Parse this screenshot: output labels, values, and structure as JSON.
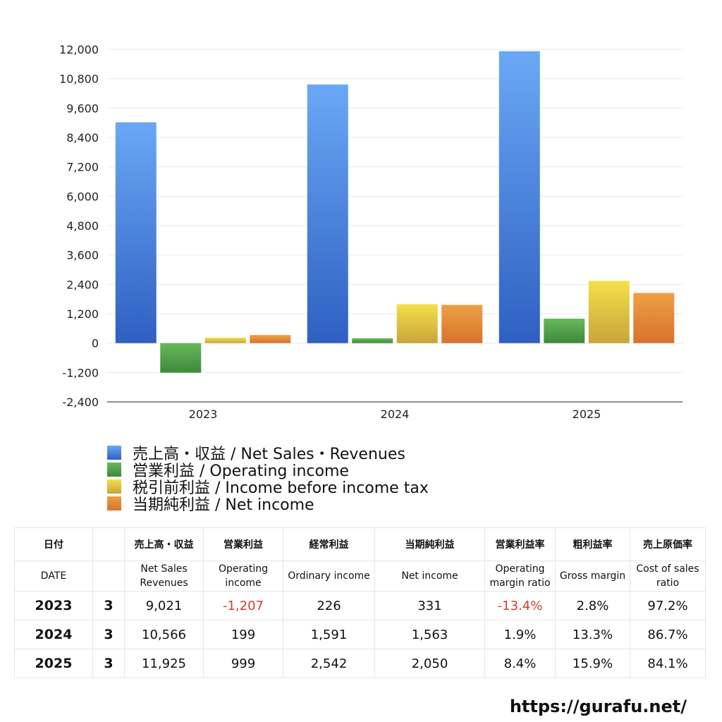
{
  "chart_data": {
    "type": "bar",
    "categories": [
      "2023",
      "2024",
      "2025"
    ],
    "series": [
      {
        "name": "売上高・収益 / Net Sales・Revenues",
        "values": [
          9021,
          10566,
          11925
        ],
        "color_top": "#6aa8f5",
        "color_bottom": "#2e60c2"
      },
      {
        "name": "営業利益 / Operating income",
        "values": [
          -1207,
          199,
          999
        ],
        "color_top": "#68b85c",
        "color_bottom": "#3c8a3a"
      },
      {
        "name": "税引前利益 / Income before income tax",
        "values": [
          226,
          1591,
          2542
        ],
        "color_top": "#f5e04a",
        "color_bottom": "#c8a43a"
      },
      {
        "name": "当期純利益 / Net income",
        "values": [
          331,
          1563,
          2050
        ],
        "color_top": "#eda044",
        "color_bottom": "#d8722e"
      }
    ],
    "ylim": [
      -2400,
      12000
    ],
    "yticks": [
      12000,
      10800,
      9600,
      8400,
      7200,
      6000,
      4800,
      3600,
      2400,
      1200,
      0,
      -1200,
      -2400
    ],
    "ytick_labels": [
      "12,000",
      "10,800",
      "9,600",
      "8,400",
      "7,200",
      "6,000",
      "4,800",
      "3,600",
      "2,400",
      "1,200",
      "0",
      "-1,200",
      "-2,400"
    ],
    "grid": true,
    "legend_position": "bottom-left",
    "title": "",
    "xlabel": "",
    "ylabel": ""
  },
  "table": {
    "header_jp": {
      "date": "日付",
      "sales": "売上高・収益",
      "operating": "営業利益",
      "ordinary": "経常利益",
      "net": "当期純利益",
      "op_margin": "営業利益率",
      "gross": "粗利益率",
      "cost": "売上原価率"
    },
    "header_en": {
      "date": "DATE",
      "sales": "Net Sales Revenues",
      "operating": "Operating income",
      "ordinary": "Ordinary income",
      "net": "Net income",
      "op_margin": "Operating margin ratio",
      "gross": "Gross margin",
      "cost": "Cost of sales ratio"
    },
    "rows": [
      {
        "year": "2023",
        "month": "3",
        "sales": "9,021",
        "operating": "-1,207",
        "ordinary": "226",
        "net": "331",
        "op_margin": "-13.4%",
        "gross": "2.8%",
        "cost": "97.2%"
      },
      {
        "year": "2024",
        "month": "3",
        "sales": "10,566",
        "operating": "199",
        "ordinary": "1,591",
        "net": "1,563",
        "op_margin": "1.9%",
        "gross": "13.3%",
        "cost": "86.7%"
      },
      {
        "year": "2025",
        "month": "3",
        "sales": "11,925",
        "operating": "999",
        "ordinary": "2,542",
        "net": "2,050",
        "op_margin": "8.4%",
        "gross": "15.9%",
        "cost": "84.1%"
      }
    ]
  },
  "footer": {
    "site": "https://gurafu.net/"
  }
}
